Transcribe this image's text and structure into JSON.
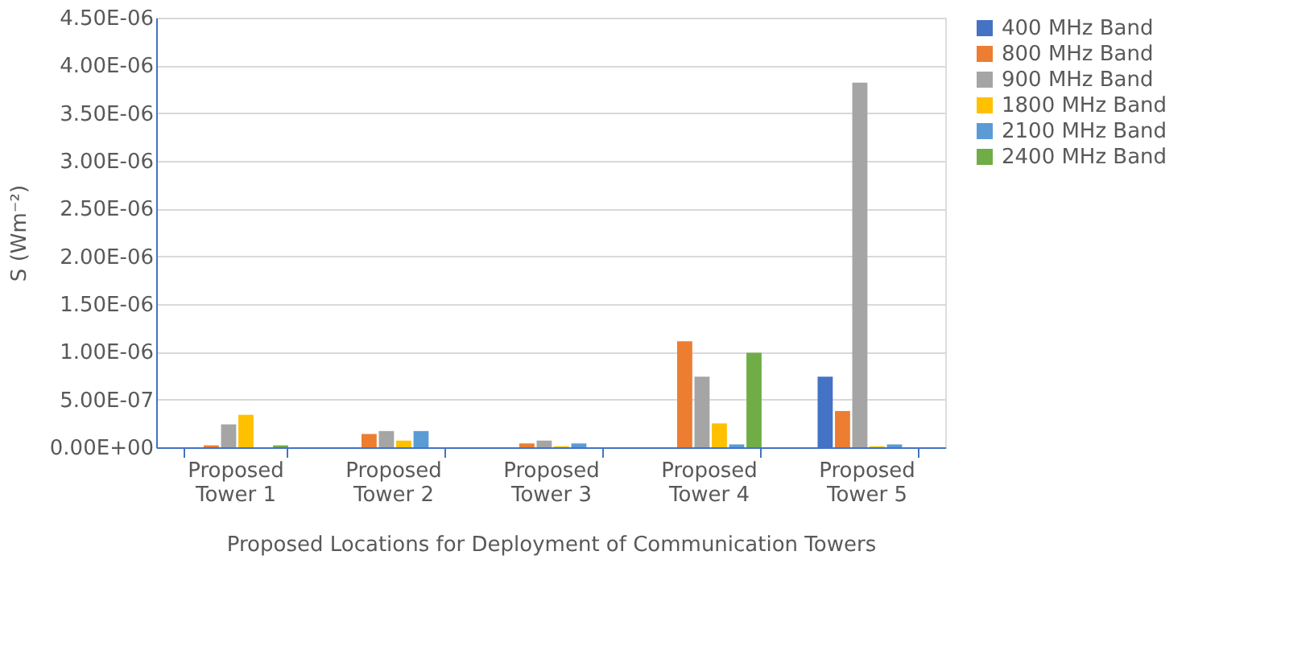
{
  "chart_data": {
    "type": "bar",
    "xlabel": "Proposed Locations for Deployment of Communication Towers",
    "ylabel": "S (Wm⁻²)",
    "categories": [
      "Proposed Tower 1",
      "Proposed Tower 2",
      "Proposed Tower 3",
      "Proposed Tower 4",
      "Proposed Tower 5"
    ],
    "series": [
      {
        "name": "400 MHz Band",
        "color": "#4472c4",
        "values": [
          0,
          0,
          0,
          0,
          7.4e-07
        ]
      },
      {
        "name": "800 MHz Band",
        "color": "#ed7d31",
        "values": [
          2e-08,
          1.4e-07,
          4e-08,
          1.11e-06,
          3.8e-07
        ]
      },
      {
        "name": "900 MHz Band",
        "color": "#a5a5a5",
        "values": [
          2.4e-07,
          1.7e-07,
          7e-08,
          7.4e-07,
          3.82e-06
        ]
      },
      {
        "name": "1800 MHz Band",
        "color": "#ffc000",
        "values": [
          3.4e-07,
          7e-08,
          1e-08,
          2.5e-07,
          1e-08
        ]
      },
      {
        "name": "2100 MHz Band",
        "color": "#5b9bd5",
        "values": [
          0,
          1.7e-07,
          4e-08,
          3e-08,
          3e-08
        ]
      },
      {
        "name": "2400 MHz Band",
        "color": "#70ad47",
        "values": [
          2e-08,
          0,
          0,
          9.9e-07,
          0
        ]
      }
    ],
    "ylim": [
      0,
      4.5e-06
    ],
    "yticks": [
      {
        "value": 0,
        "label": "0.00E+00"
      },
      {
        "value": 5e-07,
        "label": "5.00E-07"
      },
      {
        "value": 1e-06,
        "label": "1.00E-06"
      },
      {
        "value": 1.5e-06,
        "label": "1.50E-06"
      },
      {
        "value": 2e-06,
        "label": "2.00E-06"
      },
      {
        "value": 2.5e-06,
        "label": "2.50E-06"
      },
      {
        "value": 3e-06,
        "label": "3.00E-06"
      },
      {
        "value": 3.5e-06,
        "label": "3.50E-06"
      },
      {
        "value": 4e-06,
        "label": "4.00E-06"
      },
      {
        "value": 4.5e-06,
        "label": "4.50E-06"
      }
    ],
    "grid": "y",
    "legend": "right"
  }
}
